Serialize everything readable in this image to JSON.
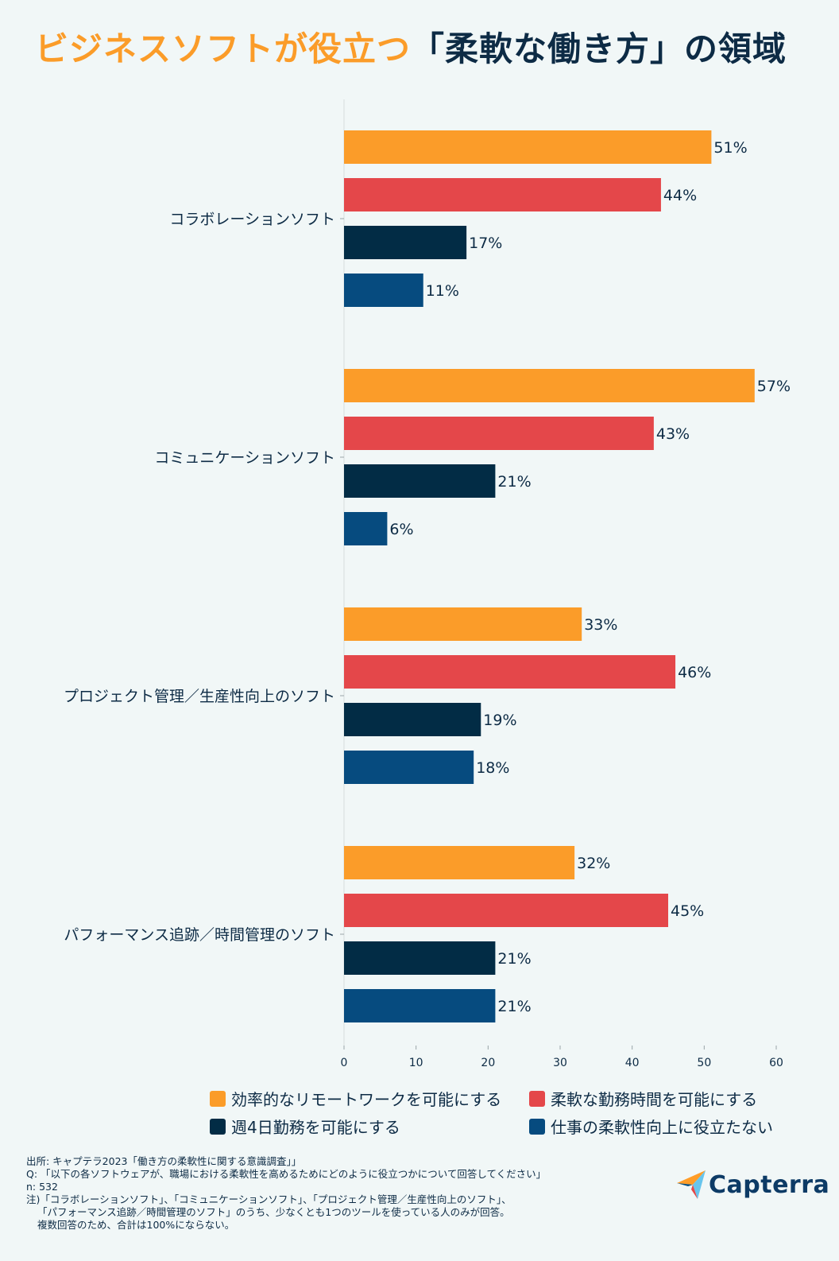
{
  "title": {
    "part1": "ビジネスソフトが役立つ",
    "part2": "「柔軟な働き方」の領域"
  },
  "colors": {
    "orange": "#fb9c29",
    "red": "#e4474a",
    "navy": "#022c45",
    "blue": "#064b7f",
    "text": "#0d2b45",
    "background": "#f1f7f7"
  },
  "chart_data": {
    "type": "bar",
    "orientation": "horizontal",
    "categories": [
      "コラボレーションソフト",
      "コミュニケーションソフト",
      "プロジェクト管理／生産性向上のソフト",
      "パフォーマンス追跡／時間管理のソフト"
    ],
    "series": [
      {
        "name": "効率的なリモートワークを可能にする",
        "color": "#fb9c29",
        "values": [
          51,
          57,
          33,
          32
        ],
        "labels": [
          "51%",
          "57%",
          "33%",
          "32%"
        ]
      },
      {
        "name": "柔軟な勤務時間を可能にする",
        "color": "#e4474a",
        "values": [
          44,
          43,
          46,
          45
        ],
        "labels": [
          "44%",
          "43%",
          "46%",
          "45%"
        ]
      },
      {
        "name": "週4日勤務を可能にする",
        "color": "#022c45",
        "values": [
          17,
          21,
          19,
          21
        ],
        "labels": [
          "17%",
          "21%",
          "19%",
          "21%"
        ]
      },
      {
        "name": "仕事の柔軟性向上に役立たない",
        "color": "#064b7f",
        "values": [
          11,
          6,
          18,
          21
        ],
        "labels": [
          "11%",
          "6%",
          "18%",
          "21%"
        ]
      }
    ],
    "xlim": [
      0,
      60
    ],
    "xticks": [
      "0",
      "10",
      "20",
      "30",
      "40",
      "50",
      "60"
    ],
    "grid": false,
    "legend_position": "bottom"
  },
  "footer": {
    "source": "出所: キャプテラ2023「働き方の柔軟性に関する意識調査」」",
    "question": "Q: 「以下の各ソフトウェアが、職場における柔軟性を高めるためにどのように役立つかについて回答してください」",
    "n": "n: 532",
    "note1": "注)「コラボレーションソフト」、「コミュニケーションソフト」、「プロジェクト管理／生産性向上のソフト」、",
    "note2": "「パフォーマンス追跡／時間管理のソフト」のうち、少なくとも1つのツールを使っている人のみが回答。",
    "note3": "複数回答のため、合計は100%にならない。"
  },
  "logo": {
    "text": "Capterra"
  }
}
